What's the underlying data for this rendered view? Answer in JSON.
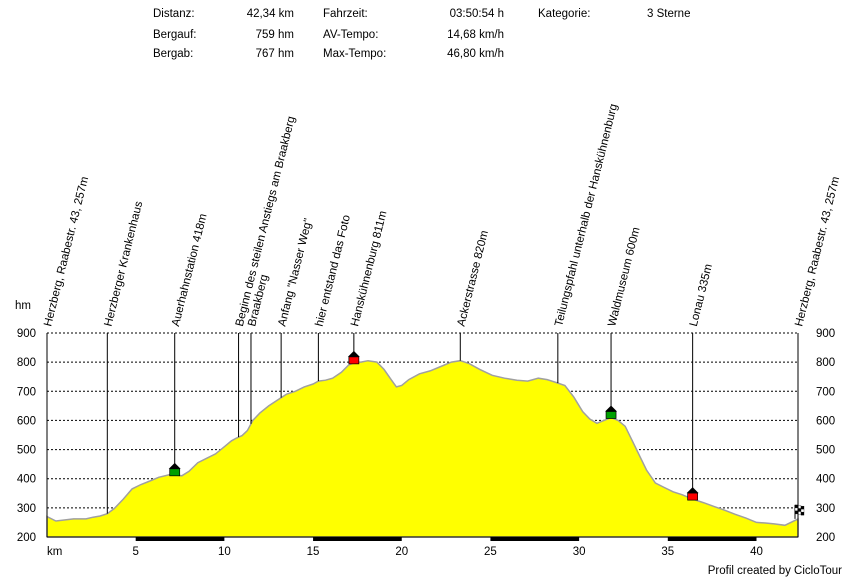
{
  "stats": {
    "distance_label": "Distanz:",
    "distance": "42,34 km",
    "ascent_label": "Bergauf:",
    "ascent": "759 hm",
    "descent_label": "Bergab:",
    "descent": "767 hm",
    "time_label": "Fahrzeit:",
    "time": "03:50:54 h",
    "avg_label": "AV-Tempo:",
    "avg": "14,68 km/h",
    "max_label": "Max-Tempo:",
    "max": "46,80 km/h",
    "category_label": "Kategorie:",
    "category": "3 Sterne"
  },
  "footer": {
    "credit": "Profil created by CicloTour"
  },
  "chart_data": {
    "type": "area",
    "title": "",
    "xlabel": "km",
    "ylabel": "hm",
    "xlim": [
      0,
      42.34
    ],
    "ylim": [
      200,
      900
    ],
    "x_ticks": [
      5,
      10,
      15,
      20,
      25,
      30,
      35,
      40
    ],
    "y_ticks": [
      200,
      300,
      400,
      500,
      600,
      700,
      800,
      900
    ],
    "grid": "horizontal dashed",
    "fill_color": "#ffff00",
    "line_color": "#a0a0a0",
    "series": [
      {
        "x": [
          0,
          0.5,
          1.5,
          2.2,
          2.6,
          3.0,
          3.4,
          3.8,
          4.3,
          4.8,
          5.3,
          5.8,
          6.3,
          7.0,
          7.6,
          8.0,
          8.5,
          9.0,
          9.5,
          10.0,
          10.4,
          10.7,
          11.0,
          11.3,
          11.6,
          12.0,
          12.5,
          13.0,
          13.5,
          14.0,
          14.5,
          15.0,
          15.3,
          15.7,
          16.1,
          16.6,
          17.0,
          17.4,
          17.7,
          18.1,
          18.6,
          19.0,
          19.4,
          19.7,
          20.0,
          20.4,
          21.0,
          21.6,
          22.2,
          22.8,
          23.3,
          23.8,
          24.4,
          25.1,
          25.8,
          26.5,
          27.1,
          27.7,
          28.2,
          28.7,
          29.2,
          29.7,
          30.2,
          30.6,
          31.0,
          31.4,
          31.8,
          32.2,
          32.6,
          33.0,
          33.4,
          33.8,
          34.3,
          34.8,
          35.3,
          35.8,
          36.4,
          37.0,
          37.6,
          38.2,
          38.8,
          39.4,
          40.0,
          40.5,
          41.0,
          41.6,
          42.34
        ],
        "y": [
          270,
          255,
          262,
          262,
          268,
          272,
          280,
          298,
          330,
          365,
          380,
          392,
          405,
          415,
          410,
          425,
          455,
          470,
          485,
          510,
          530,
          540,
          548,
          565,
          600,
          625,
          650,
          670,
          690,
          700,
          715,
          725,
          735,
          738,
          745,
          765,
          790,
          800,
          800,
          805,
          800,
          775,
          740,
          715,
          720,
          740,
          760,
          770,
          785,
          800,
          805,
          795,
          775,
          755,
          745,
          738,
          735,
          745,
          740,
          730,
          720,
          680,
          630,
          605,
          590,
          600,
          610,
          600,
          580,
          530,
          480,
          430,
          385,
          370,
          355,
          345,
          330,
          318,
          305,
          292,
          278,
          265,
          250,
          248,
          245,
          240,
          262
        ]
      }
    ],
    "waypoints": [
      {
        "km": 0.0,
        "label": "Herzberg, Raabestr. 43, 257m"
      },
      {
        "km": 3.4,
        "label": "Herzberger Krankenhaus"
      },
      {
        "km": 7.2,
        "label": "Auerhahnstation 418m",
        "marker": "green"
      },
      {
        "km": 10.8,
        "label": "Beginn des steilen Anstiegs am Braakberg"
      },
      {
        "km": 11.5,
        "label": "Braakberg"
      },
      {
        "km": 13.2,
        "label": "Anfang \"Nasser Weg\""
      },
      {
        "km": 15.3,
        "label": "hier entstand das Foto"
      },
      {
        "km": 17.3,
        "label": "Hanskühnenburg 811m",
        "marker": "red"
      },
      {
        "km": 23.3,
        "label": "Ackerstrasse 820m"
      },
      {
        "km": 28.8,
        "label": "Teilungspfahl unterhalb der Hanskühnenburg"
      },
      {
        "km": 31.8,
        "label": "Waldmuseum 600m",
        "marker": "green"
      },
      {
        "km": 36.4,
        "label": "Lonau 335m",
        "marker": "red"
      },
      {
        "km": 42.34,
        "label": "Herzberg, Raabestr. 43, 257m",
        "marker": "finish"
      }
    ]
  }
}
